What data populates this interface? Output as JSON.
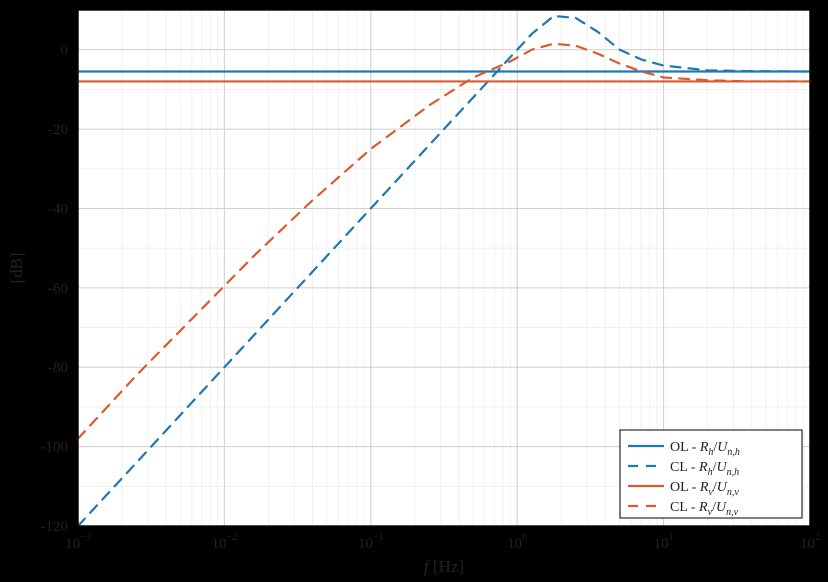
{
  "chart": {
    "type": "line",
    "background_color": "#ffffff",
    "outer_background": "#000000",
    "plot_border_color": "#000000",
    "grid_major_color": "#cfcfcf",
    "grid_minor_color": "#ededed",
    "axis_font_family": "Times New Roman",
    "xlabel": "f [Hz]",
    "ylabel": "[dB]",
    "xlim": [
      0.001,
      100
    ],
    "ylim": [
      -120,
      10
    ],
    "x_scale": "log",
    "y_scale": "linear",
    "x_ticks": [
      -3,
      -2,
      -1,
      0,
      1,
      2
    ],
    "x_tick_labels": [
      "10⁻³",
      "10⁻²",
      "10⁻¹",
      "10⁰",
      "10¹",
      "10²"
    ],
    "y_ticks": [
      -120,
      -100,
      -80,
      -60,
      -40,
      -20,
      0
    ],
    "y_tick_labels": [
      "-120",
      "-100",
      "-80",
      "-60",
      "-40",
      "-20",
      "0"
    ],
    "label_fontsize": 17,
    "tick_fontsize": 15,
    "series": [
      {
        "id": "ol_h",
        "color": "#1f77b4",
        "dash": "solid",
        "width": 2.2,
        "legend_prefix": "OL - ",
        "legend_ratio": [
          "R",
          "h",
          "U",
          "n,h"
        ],
        "x": [
          -3,
          2
        ],
        "y": [
          -5.5,
          -5.5
        ]
      },
      {
        "id": "cl_h",
        "color": "#1f77b4",
        "dash": "10,8",
        "width": 2.2,
        "legend_prefix": "CL - ",
        "legend_ratio": [
          "R",
          "h",
          "U",
          "n,h"
        ],
        "x": [
          -3,
          -2.6,
          -2.2,
          -1.8,
          -1.4,
          -1.0,
          -0.6,
          -0.3,
          -0.05,
          0.1,
          0.25,
          0.4,
          0.55,
          0.7,
          0.85,
          1.0,
          1.3,
          1.6,
          2.0
        ],
        "y": [
          -120,
          -104,
          -88,
          -72,
          -56,
          -40,
          -24,
          -12,
          -2,
          4,
          8.5,
          8,
          4.5,
          0,
          -2.5,
          -4,
          -5.2,
          -5.4,
          -5.5
        ]
      },
      {
        "id": "ol_v",
        "color": "#d95b2f",
        "dash": "solid",
        "width": 2.2,
        "legend_prefix": "OL - ",
        "legend_ratio": [
          "R",
          "v",
          "U",
          "n,v"
        ],
        "x": [
          -3,
          2
        ],
        "y": [
          -8,
          -8
        ]
      },
      {
        "id": "cl_v",
        "color": "#d95b2f",
        "dash": "10,8",
        "width": 2.2,
        "legend_prefix": "CL - ",
        "legend_ratio": [
          "R",
          "v",
          "U",
          "n,v"
        ],
        "x": [
          -3,
          -2.6,
          -2.2,
          -1.8,
          -1.4,
          -1.0,
          -0.6,
          -0.3,
          -0.05,
          0.1,
          0.25,
          0.4,
          0.55,
          0.7,
          0.85,
          1.0,
          1.3,
          1.6,
          2.0
        ],
        "y": [
          -98,
          -82,
          -67,
          -52,
          -38,
          -25,
          -14,
          -7,
          -3,
          0,
          1.5,
          1,
          -1,
          -3.5,
          -5.5,
          -7,
          -7.7,
          -8,
          -8
        ]
      }
    ],
    "legend": {
      "position": "lower-right",
      "border_color": "#000000",
      "background": "#ffffff",
      "fontsize": 14
    }
  }
}
